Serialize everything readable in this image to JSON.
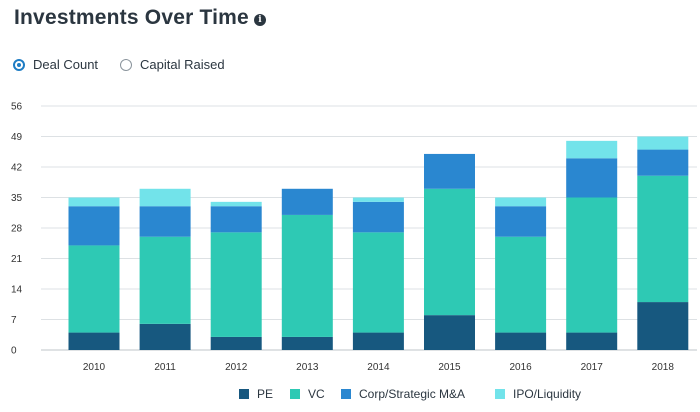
{
  "header": {
    "title": "Investments Over Time",
    "info_icon": "info-icon"
  },
  "toggle": {
    "options": [
      {
        "label": "Deal Count",
        "selected": true
      },
      {
        "label": "Capital Raised",
        "selected": false
      }
    ]
  },
  "chart_data": {
    "type": "bar",
    "stacked": true,
    "title": "",
    "xlabel": "",
    "ylabel": "",
    "categories": [
      "2010",
      "2011",
      "2012",
      "2013",
      "2014",
      "2015",
      "2016",
      "2017",
      "2018"
    ],
    "ylim": [
      0,
      56
    ],
    "yticks": [
      "0",
      "7",
      "14",
      "21",
      "28",
      "35",
      "42",
      "49",
      "56"
    ],
    "grid": true,
    "legend_position": "bottom",
    "series": [
      {
        "name": "PE",
        "color": "#17587f",
        "values": [
          4,
          6,
          3,
          3,
          4,
          8,
          4,
          4,
          11
        ]
      },
      {
        "name": "VC",
        "color": "#2ec9b4",
        "values": [
          20,
          20,
          24,
          28,
          23,
          29,
          22,
          31,
          29
        ]
      },
      {
        "name": "Corp/Strategic M&A",
        "color": "#2a87d0",
        "values": [
          9,
          7,
          6,
          6,
          7,
          8,
          7,
          9,
          6
        ]
      },
      {
        "name": "IPO/Liquidity",
        "color": "#72e3ea",
        "values": [
          2,
          4,
          1,
          0,
          1,
          0,
          2,
          4,
          3
        ]
      }
    ]
  }
}
